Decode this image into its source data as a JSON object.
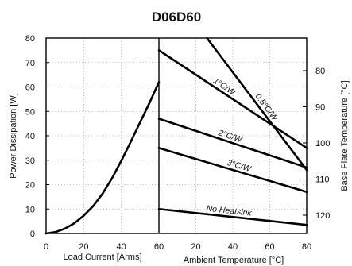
{
  "chart_data": {
    "type": "line",
    "title": "D06D60",
    "left_panel": {
      "xlabel": "Load Current [Arms]",
      "ylabel": "Power Dissipation [W]",
      "xlim": [
        0,
        60
      ],
      "ylim": [
        0,
        80
      ],
      "x_ticks": [
        0,
        20,
        40,
        60
      ],
      "y_ticks": [
        0,
        10,
        20,
        30,
        40,
        50,
        60,
        70,
        80
      ],
      "series": [
        {
          "x": [
            0,
            5,
            10,
            15,
            20,
            25,
            30,
            35,
            40,
            45,
            50,
            55,
            60
          ],
          "y": [
            0,
            0.6,
            2,
            4.2,
            7.3,
            11.2,
            16.3,
            22.5,
            29.8,
            37.5,
            45.5,
            53.5,
            62
          ]
        }
      ]
    },
    "right_panel": {
      "xlabel": "Ambient Temperature [°C]",
      "ylabel": "Base Plate Temperature [°C]",
      "xlim": [
        0,
        80
      ],
      "x_ticks": [
        20,
        40,
        60,
        80
      ],
      "base_plate_ticks": [
        80,
        90,
        100,
        110,
        120
      ],
      "series": [
        {
          "name": "0.5°C/W",
          "x": [
            26,
            80
          ],
          "y": [
            80,
            26
          ]
        },
        {
          "name": "1°C/W",
          "x": [
            0,
            80
          ],
          "y": [
            75,
            35
          ]
        },
        {
          "name": "2°C/W",
          "x": [
            0,
            80
          ],
          "y": [
            47,
            27
          ]
        },
        {
          "name": "3°C/W",
          "x": [
            0,
            80
          ],
          "y": [
            35,
            17
          ]
        },
        {
          "name": "No Heatsink",
          "x": [
            0,
            80
          ],
          "y": [
            10,
            3.5
          ]
        }
      ]
    }
  }
}
